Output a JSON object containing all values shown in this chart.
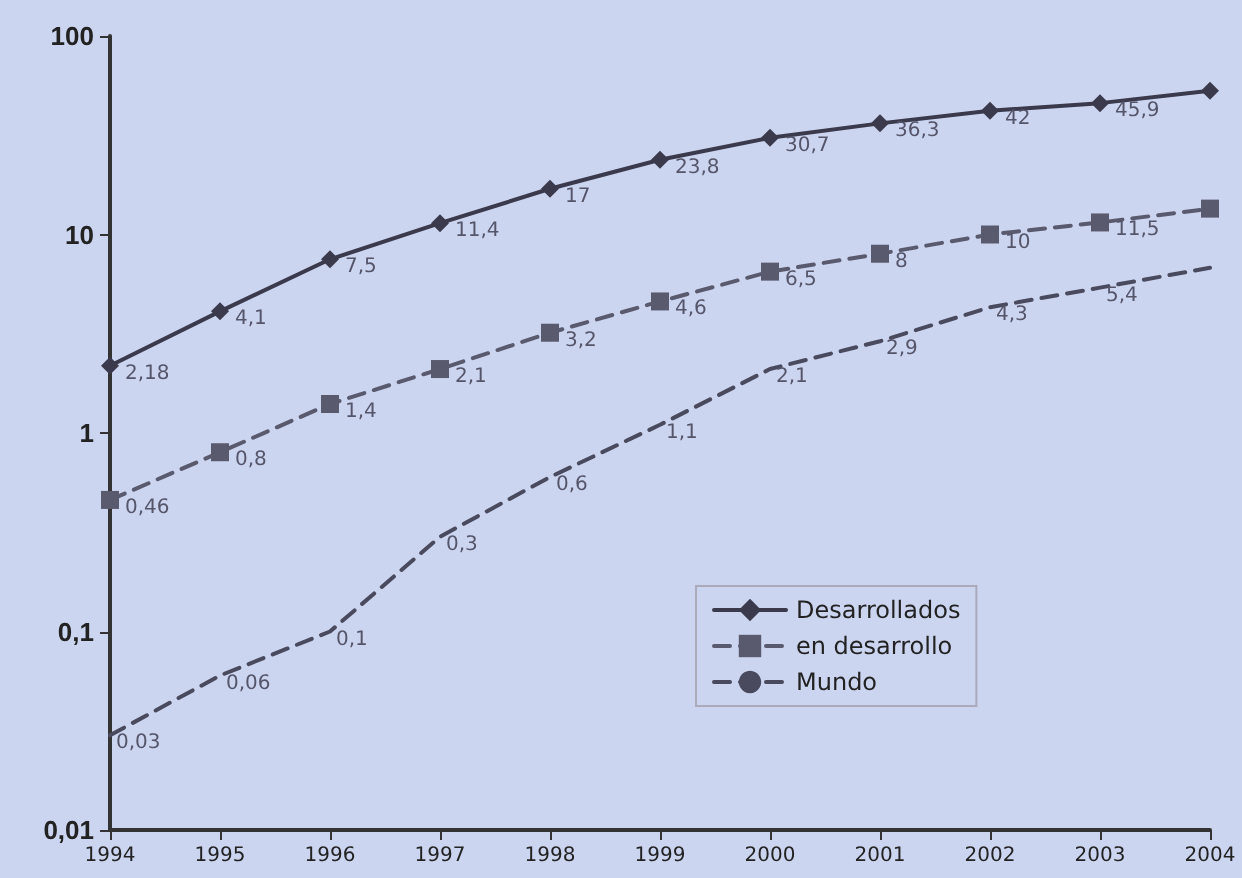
{
  "chart_data": {
    "type": "line",
    "categories": [
      "1994",
      "1995",
      "1996",
      "1997",
      "1998",
      "1999",
      "2000",
      "2001",
      "2002",
      "2003",
      "2004"
    ],
    "series": [
      {
        "name": "Desarrollados",
        "color": "#3a3a4c",
        "marker": "diamond",
        "line_style": "solid",
        "values": [
          2.18,
          4.1,
          7.5,
          11.4,
          17,
          23.8,
          30.7,
          36.3,
          42,
          45.9,
          53
        ],
        "value_labels": [
          "2,18",
          "4,1",
          "7,5",
          "11,4",
          "17",
          "23,8",
          "30,7",
          "36,3",
          "42",
          "45,9",
          null
        ]
      },
      {
        "name": "en desarrollo",
        "color": "#5a5a6e",
        "marker": "square",
        "line_style": "dashed",
        "values": [
          0.46,
          0.8,
          1.4,
          2.1,
          3.2,
          4.6,
          6.5,
          8,
          10,
          11.5,
          13.5
        ],
        "value_labels": [
          "0,46",
          "0,8",
          "1,4",
          "2,1",
          "3,2",
          "4,6",
          "6,5",
          "8",
          "10",
          "11,5",
          null
        ]
      },
      {
        "name": "Mundo",
        "color": "#4a4a5e",
        "marker": "none",
        "line_style": "dashed",
        "values": [
          0.03,
          0.06,
          0.1,
          0.3,
          0.6,
          1.1,
          2.1,
          2.9,
          4.3,
          5.4,
          6.8
        ],
        "value_labels": [
          "0,03",
          "0,06",
          "0,1",
          "0,3",
          "0,6",
          "1,1",
          "2,1",
          "2,9",
          "4,3",
          "5,4",
          null
        ]
      }
    ],
    "log": "y",
    "ylim": [
      0.01,
      100
    ],
    "yticks": [
      {
        "value": 0.01,
        "label": "0,01"
      },
      {
        "value": 0.1,
        "label": "0,1"
      },
      1,
      10,
      100
    ],
    "grid": false,
    "legend": "center right"
  }
}
